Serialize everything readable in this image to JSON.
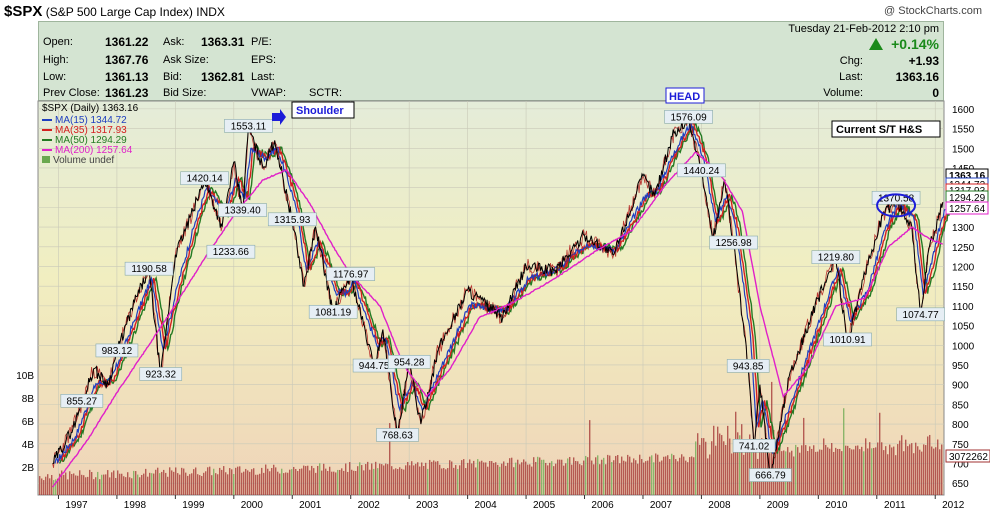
{
  "header": {
    "symbol": "$SPX",
    "name": "(S&P 500 Large Cap Index)",
    "exchange": "INDX",
    "watermark": "@ StockCharts.com"
  },
  "quote": {
    "open_label": "Open:",
    "open": "1361.22",
    "high_label": "High:",
    "high": "1367.76",
    "low_label": "Low:",
    "low": "1361.13",
    "prev_label": "Prev Close:",
    "prev": "1361.23",
    "ask_label": "Ask:",
    "ask": "1363.31",
    "asksize_label": "Ask Size:",
    "bid_label": "Bid:",
    "bid": "1362.81",
    "bidsize_label": "Bid Size:",
    "pe_label": "P/E:",
    "eps_label": "EPS:",
    "last_label_mid": "Last:",
    "vwap_label": "VWAP:",
    "sctr_label": "SCTR:",
    "datetime": "Tuesday  21-Feb-2012  2:10 pm",
    "chg_pct": "+0.14%",
    "chg_label": "Chg:",
    "chg": "+1.93",
    "last_label": "Last:",
    "last": "1363.16",
    "volume_label": "Volume:",
    "volume": "0"
  },
  "legend": {
    "main": "$SPX (Daily) 1363.16",
    "ma15": "MA(15) 1344.72",
    "ma35": "MA(35) 1317.93",
    "ma50": "MA(50) 1294.29",
    "ma200": "MA(200) 1257.64",
    "vol": "Volume undef"
  },
  "colors": {
    "price": "#000000",
    "ma15": "#1f3fbf",
    "ma35": "#d42020",
    "ma50": "#237a23",
    "ma200": "#e020c8",
    "volume": "#a13030",
    "volume_up": "#6aa84f",
    "annotation_box": "#1c1cd8"
  },
  "annotations": {
    "shoulder": "Shoulder",
    "head": "HEAD",
    "current": "Current S/T H&S"
  },
  "chart_data": {
    "type": "line",
    "title": "$SPX (S&P 500 Large Cap Index)",
    "price_axis_ticks": [
      650,
      700,
      750,
      800,
      850,
      900,
      950,
      1000,
      1050,
      1100,
      1150,
      1200,
      1250,
      1300,
      1350,
      1400,
      1450,
      1500,
      1550,
      1600
    ],
    "volume_axis_ticks": [
      "2B",
      "4B",
      "6B",
      "8B",
      "10B"
    ],
    "x_ticks": [
      "1997",
      "1998",
      "1999",
      "2000",
      "2001",
      "2002",
      "2003",
      "2004",
      "2005",
      "2006",
      "2007",
      "2008",
      "2009",
      "2010",
      "2011",
      "2012"
    ],
    "ylim": [
      620,
      1620
    ],
    "last_labels": [
      "1363.16",
      "1344.72",
      "1317.93",
      "1294.29",
      "1257.64"
    ],
    "volume_last_label": "3072262",
    "series_price": [
      {
        "x": 1996.9,
        "y": 700
      },
      {
        "x": 1997.25,
        "y": 790
      },
      {
        "x": 1997.6,
        "y": 940
      },
      {
        "x": 1997.85,
        "y": 900
      },
      {
        "x": 1998.0,
        "y": 983.12
      },
      {
        "x": 1998.3,
        "y": 1110
      },
      {
        "x": 1998.55,
        "y": 1190.58
      },
      {
        "x": 1998.75,
        "y": 923.32
      },
      {
        "x": 1999.0,
        "y": 1230
      },
      {
        "x": 1999.3,
        "y": 1340
      },
      {
        "x": 1999.5,
        "y": 1420.14
      },
      {
        "x": 1999.8,
        "y": 1300
      },
      {
        "x": 2000.0,
        "y": 1465
      },
      {
        "x": 2000.15,
        "y": 1339.4
      },
      {
        "x": 2000.25,
        "y": 1553.11
      },
      {
        "x": 2000.5,
        "y": 1450
      },
      {
        "x": 2000.7,
        "y": 1520
      },
      {
        "x": 2001.0,
        "y": 1315.93
      },
      {
        "x": 2001.2,
        "y": 1150
      },
      {
        "x": 2001.4,
        "y": 1300
      },
      {
        "x": 2001.7,
        "y": 1081.19
      },
      {
        "x": 2001.9,
        "y": 1150
      },
      {
        "x": 2002.0,
        "y": 1176.97
      },
      {
        "x": 2002.4,
        "y": 944.75
      },
      {
        "x": 2002.55,
        "y": 1040
      },
      {
        "x": 2002.8,
        "y": 768.63
      },
      {
        "x": 2003.0,
        "y": 954.28
      },
      {
        "x": 2003.2,
        "y": 800
      },
      {
        "x": 2003.5,
        "y": 990
      },
      {
        "x": 2004.0,
        "y": 1140
      },
      {
        "x": 2004.6,
        "y": 1070
      },
      {
        "x": 2005.0,
        "y": 1200
      },
      {
        "x": 2005.5,
        "y": 1190
      },
      {
        "x": 2006.0,
        "y": 1280
      },
      {
        "x": 2006.5,
        "y": 1230
      },
      {
        "x": 2007.0,
        "y": 1430
      },
      {
        "x": 2007.2,
        "y": 1380
      },
      {
        "x": 2007.5,
        "y": 1530
      },
      {
        "x": 2007.78,
        "y": 1576.09
      },
      {
        "x": 2008.0,
        "y": 1440.24
      },
      {
        "x": 2008.2,
        "y": 1270
      },
      {
        "x": 2008.4,
        "y": 1420
      },
      {
        "x": 2008.55,
        "y": 1256.98
      },
      {
        "x": 2008.8,
        "y": 943.85
      },
      {
        "x": 2008.9,
        "y": 741.02
      },
      {
        "x": 2009.0,
        "y": 900
      },
      {
        "x": 2009.18,
        "y": 666.79
      },
      {
        "x": 2009.5,
        "y": 920
      },
      {
        "x": 2010.0,
        "y": 1120
      },
      {
        "x": 2010.3,
        "y": 1219.8
      },
      {
        "x": 2010.5,
        "y": 1010.91
      },
      {
        "x": 2010.8,
        "y": 1180
      },
      {
        "x": 2011.1,
        "y": 1330
      },
      {
        "x": 2011.33,
        "y": 1370.58
      },
      {
        "x": 2011.6,
        "y": 1300
      },
      {
        "x": 2011.75,
        "y": 1074.77
      },
      {
        "x": 2011.9,
        "y": 1250
      },
      {
        "x": 2012.0,
        "y": 1290
      },
      {
        "x": 2012.13,
        "y": 1363.16
      }
    ],
    "series_ma200": [
      {
        "x": 1996.9,
        "y": 640
      },
      {
        "x": 1997.5,
        "y": 760
      },
      {
        "x": 1998.0,
        "y": 880
      },
      {
        "x": 1998.5,
        "y": 990
      },
      {
        "x": 1998.9,
        "y": 1080
      },
      {
        "x": 1999.5,
        "y": 1220
      },
      {
        "x": 2000.0,
        "y": 1330
      },
      {
        "x": 2000.5,
        "y": 1420
      },
      {
        "x": 2000.9,
        "y": 1445
      },
      {
        "x": 2001.3,
        "y": 1360
      },
      {
        "x": 2001.7,
        "y": 1250
      },
      {
        "x": 2002.0,
        "y": 1180
      },
      {
        "x": 2002.5,
        "y": 1100
      },
      {
        "x": 2002.9,
        "y": 950
      },
      {
        "x": 2003.3,
        "y": 870
      },
      {
        "x": 2003.7,
        "y": 940
      },
      {
        "x": 2004.2,
        "y": 1070
      },
      {
        "x": 2004.8,
        "y": 1110
      },
      {
        "x": 2005.5,
        "y": 1170
      },
      {
        "x": 2006.2,
        "y": 1240
      },
      {
        "x": 2006.8,
        "y": 1290
      },
      {
        "x": 2007.4,
        "y": 1410
      },
      {
        "x": 2007.9,
        "y": 1490
      },
      {
        "x": 2008.3,
        "y": 1440
      },
      {
        "x": 2008.7,
        "y": 1340
      },
      {
        "x": 2009.0,
        "y": 1100
      },
      {
        "x": 2009.4,
        "y": 870
      },
      {
        "x": 2009.8,
        "y": 940
      },
      {
        "x": 2010.3,
        "y": 1100
      },
      {
        "x": 2010.8,
        "y": 1120
      },
      {
        "x": 2011.2,
        "y": 1250
      },
      {
        "x": 2011.6,
        "y": 1300
      },
      {
        "x": 2011.9,
        "y": 1270
      },
      {
        "x": 2012.13,
        "y": 1257.64
      }
    ],
    "price_labels": [
      {
        "x": 1998.0,
        "y": 983.12,
        "text": "983.12"
      },
      {
        "x": 1997.4,
        "y": 855.27,
        "text": "855.27"
      },
      {
        "x": 1998.55,
        "y": 1190.58,
        "text": "1190.58"
      },
      {
        "x": 1998.75,
        "y": 923.32,
        "text": "923.32"
      },
      {
        "x": 1999.5,
        "y": 1420.14,
        "text": "1420.14"
      },
      {
        "x": 1999.95,
        "y": 1233.66,
        "text": "1233.66"
      },
      {
        "x": 2000.25,
        "y": 1553.11,
        "text": "1553.11"
      },
      {
        "x": 2000.15,
        "y": 1339.4,
        "text": "1339.40"
      },
      {
        "x": 2001.0,
        "y": 1315.93,
        "text": "1315.93"
      },
      {
        "x": 2001.7,
        "y": 1081.19,
        "text": "1081.19"
      },
      {
        "x": 2002.0,
        "y": 1176.97,
        "text": "1176.97"
      },
      {
        "x": 2002.4,
        "y": 944.75,
        "text": "944.75"
      },
      {
        "x": 2003.0,
        "y": 954.28,
        "text": "954.28"
      },
      {
        "x": 2002.8,
        "y": 768.63,
        "text": "768.63"
      },
      {
        "x": 2007.78,
        "y": 1576.09,
        "text": "1576.09"
      },
      {
        "x": 2008.0,
        "y": 1440.24,
        "text": "1440.24"
      },
      {
        "x": 2008.55,
        "y": 1256.98,
        "text": "1256.98"
      },
      {
        "x": 2008.8,
        "y": 943.85,
        "text": "943.85"
      },
      {
        "x": 2008.9,
        "y": 741.02,
        "text": "741.02"
      },
      {
        "x": 2009.18,
        "y": 666.79,
        "text": "666.79"
      },
      {
        "x": 2010.3,
        "y": 1219.8,
        "text": "1219.80"
      },
      {
        "x": 2010.5,
        "y": 1010.91,
        "text": "1010.91"
      },
      {
        "x": 2011.33,
        "y": 1370.58,
        "text": "1370.58"
      },
      {
        "x": 2011.75,
        "y": 1074.77,
        "text": "1074.77"
      }
    ]
  }
}
